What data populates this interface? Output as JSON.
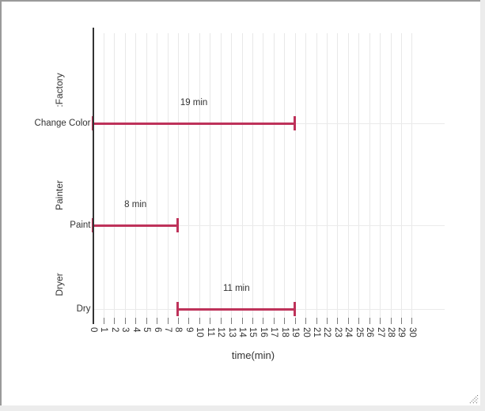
{
  "window": {
    "background_color": "#ececec",
    "panel_background": "#ffffff",
    "panel_border_color": "#9a9a9a"
  },
  "chart_data": {
    "type": "gantt",
    "title": "",
    "xlabel": "time(min)",
    "x_min": 0,
    "x_max": 30,
    "x_tick_step": 1,
    "tick_label_rotation_deg": 90,
    "grid": true,
    "legend": false,
    "bar_color": "#be325a",
    "grid_color": "#e8e8e8",
    "row_line_color": "#ebebeb",
    "axis_color": "#333333",
    "tick_color": "#7a7a7a",
    "text_color": "#333333",
    "sections": [
      ":Factory",
      "Painter",
      "Dryer"
    ],
    "tasks": [
      {
        "name": "Change Color",
        "section": ":Factory",
        "start": 0,
        "end": 19,
        "duration_label": "19 min"
      },
      {
        "name": "Paint",
        "section": "Painter",
        "start": 0,
        "end": 8,
        "duration_label": "8 min"
      },
      {
        "name": "Dry",
        "section": "Dryer",
        "start": 8,
        "end": 19,
        "duration_label": "11 min"
      }
    ]
  },
  "icons": {
    "resize_grip": "diagonal-dotted-resize-grip"
  }
}
